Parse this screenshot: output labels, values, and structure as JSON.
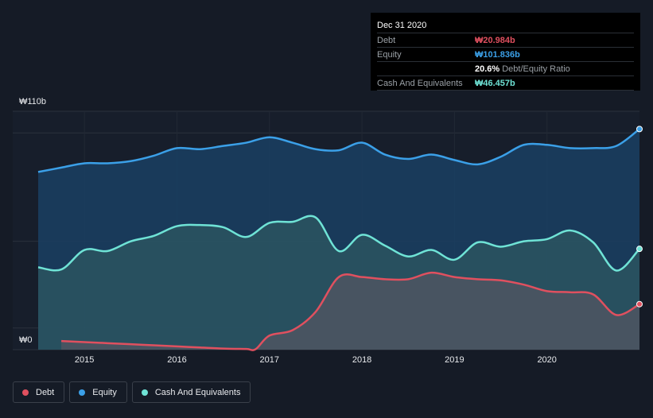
{
  "tooltip": {
    "date": "Dec 31 2020",
    "rows": [
      {
        "label": "Debt",
        "value": "₩20.984b",
        "color": "#e0505f",
        "suffix": ""
      },
      {
        "label": "Equity",
        "value": "₩101.836b",
        "color": "#3ba0e8",
        "suffix": ""
      },
      {
        "label": "",
        "value": "20.6%",
        "color": "#ffffff",
        "suffix": "Debt/Equity Ratio"
      },
      {
        "label": "Cash And Equivalents",
        "value": "₩46.457b",
        "color": "#6fe3d6",
        "suffix": ""
      }
    ]
  },
  "legend": [
    {
      "label": "Debt",
      "color": "#e0505f"
    },
    {
      "label": "Equity",
      "color": "#3ba0e8"
    },
    {
      "label": "Cash And Equivalents",
      "color": "#6fe3d6"
    }
  ],
  "chart_data": {
    "type": "area",
    "ylim": [
      0,
      110
    ],
    "y_ticks": [
      {
        "value": 110,
        "label": "₩110b"
      },
      {
        "value": 0,
        "label": "₩0"
      }
    ],
    "x_ticks": [
      2015,
      2016,
      2017,
      2018,
      2019,
      2020
    ],
    "grid": true,
    "series": [
      {
        "name": "Equity",
        "color": "#3ba0e8",
        "fill": "#1a3f63",
        "points": [
          [
            2014.5,
            82
          ],
          [
            2014.75,
            84
          ],
          [
            2015.0,
            86
          ],
          [
            2015.25,
            86
          ],
          [
            2015.5,
            87
          ],
          [
            2015.75,
            89.5
          ],
          [
            2016.0,
            93
          ],
          [
            2016.25,
            92.5
          ],
          [
            2016.5,
            94
          ],
          [
            2016.75,
            95.5
          ],
          [
            2017.0,
            98
          ],
          [
            2017.25,
            95.5
          ],
          [
            2017.5,
            92.5
          ],
          [
            2017.75,
            92
          ],
          [
            2018.0,
            95.5
          ],
          [
            2018.25,
            90
          ],
          [
            2018.5,
            88
          ],
          [
            2018.75,
            90
          ],
          [
            2019.0,
            87.5
          ],
          [
            2019.25,
            85.5
          ],
          [
            2019.5,
            89
          ],
          [
            2019.75,
            94.5
          ],
          [
            2020.0,
            94.5
          ],
          [
            2020.25,
            93
          ],
          [
            2020.5,
            93
          ],
          [
            2020.75,
            94
          ],
          [
            2021.0,
            101.8
          ]
        ]
      },
      {
        "name": "Cash And Equivalents",
        "color": "#6fe3d6",
        "fill": "#2b5560",
        "points": [
          [
            2014.5,
            38
          ],
          [
            2014.75,
            37
          ],
          [
            2015.0,
            46
          ],
          [
            2015.25,
            45.5
          ],
          [
            2015.5,
            50
          ],
          [
            2015.75,
            52.5
          ],
          [
            2016.0,
            57
          ],
          [
            2016.25,
            57.5
          ],
          [
            2016.5,
            56.5
          ],
          [
            2016.75,
            52
          ],
          [
            2017.0,
            58.5
          ],
          [
            2017.25,
            59
          ],
          [
            2017.5,
            61
          ],
          [
            2017.75,
            45.5
          ],
          [
            2018.0,
            53
          ],
          [
            2018.25,
            48
          ],
          [
            2018.5,
            43
          ],
          [
            2018.75,
            46
          ],
          [
            2019.0,
            41.5
          ],
          [
            2019.25,
            49.5
          ],
          [
            2019.5,
            47.5
          ],
          [
            2019.75,
            50
          ],
          [
            2020.0,
            51
          ],
          [
            2020.25,
            55
          ],
          [
            2020.5,
            49.5
          ],
          [
            2020.75,
            36.5
          ],
          [
            2021.0,
            46.5
          ]
        ]
      },
      {
        "name": "Debt",
        "color": "#e0505f",
        "fill": "#4d5562",
        "points": [
          [
            2014.75,
            4
          ],
          [
            2015.0,
            3.5
          ],
          [
            2015.25,
            3
          ],
          [
            2015.5,
            2.5
          ],
          [
            2015.75,
            2
          ],
          [
            2016.0,
            1.5
          ],
          [
            2016.25,
            1
          ],
          [
            2016.5,
            0.5
          ],
          [
            2016.75,
            0.3
          ],
          [
            2016.85,
            0.2
          ],
          [
            2017.0,
            6.5
          ],
          [
            2017.25,
            9
          ],
          [
            2017.5,
            17.5
          ],
          [
            2017.75,
            33.5
          ],
          [
            2018.0,
            33.5
          ],
          [
            2018.25,
            32.5
          ],
          [
            2018.5,
            32.5
          ],
          [
            2018.75,
            35.5
          ],
          [
            2019.0,
            33.5
          ],
          [
            2019.25,
            32.5
          ],
          [
            2019.5,
            32
          ],
          [
            2019.75,
            30
          ],
          [
            2020.0,
            27
          ],
          [
            2020.25,
            26.5
          ],
          [
            2020.5,
            25.5
          ],
          [
            2020.75,
            16
          ],
          [
            2021.0,
            21
          ]
        ]
      }
    ]
  }
}
